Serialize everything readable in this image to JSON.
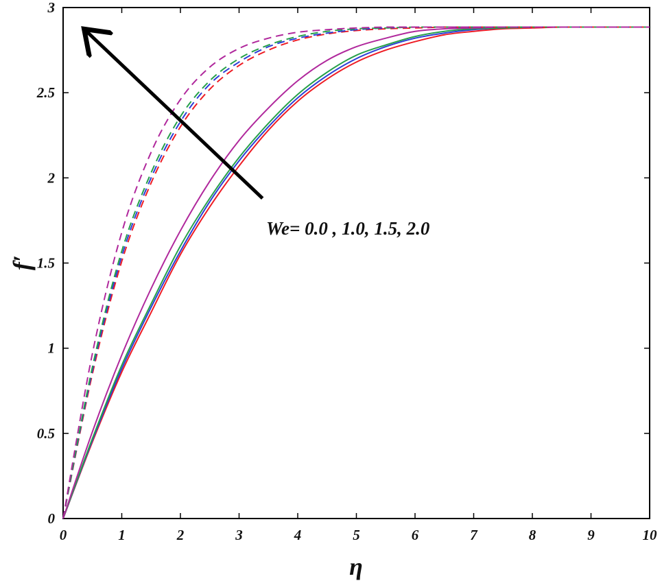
{
  "chart_data": {
    "type": "line",
    "title": "",
    "xlabel": "η",
    "ylabel": "f′",
    "xlim": [
      0,
      10
    ],
    "ylim": [
      0,
      3
    ],
    "xticks": [
      "0",
      "1",
      "2",
      "3",
      "4",
      "5",
      "6",
      "7",
      "8",
      "9",
      "10"
    ],
    "yticks": [
      "0",
      "0.5",
      "1",
      "1.5",
      "2",
      "2.5",
      "3"
    ],
    "annotation": "We= 0.0 , 1.0, 1.5, 2.0",
    "arrow": {
      "from": [
        3.4,
        1.88
      ],
      "to": [
        0.4,
        2.86
      ]
    },
    "x": [
      0,
      0.5,
      1,
      1.5,
      2,
      2.5,
      3,
      3.5,
      4,
      4.5,
      5,
      5.5,
      6,
      6.5,
      7,
      7.5,
      8,
      8.5,
      9,
      9.5,
      10
    ],
    "series": [
      {
        "color": "#ee1c24",
        "dash": false,
        "values": [
          0.0,
          0.45,
          0.86,
          1.21,
          1.55,
          1.83,
          2.07,
          2.28,
          2.45,
          2.58,
          2.68,
          2.75,
          2.8,
          2.84,
          2.86,
          2.875,
          2.88,
          2.885,
          2.885,
          2.885,
          2.885
        ]
      },
      {
        "color": "#2b3fd6",
        "dash": false,
        "values": [
          0.0,
          0.46,
          0.88,
          1.24,
          1.57,
          1.86,
          2.1,
          2.3,
          2.47,
          2.6,
          2.7,
          2.77,
          2.82,
          2.85,
          2.87,
          2.88,
          2.885,
          2.885,
          2.885,
          2.885,
          2.885
        ]
      },
      {
        "color": "#26a04a",
        "dash": false,
        "values": [
          0.0,
          0.47,
          0.9,
          1.26,
          1.6,
          1.88,
          2.12,
          2.32,
          2.49,
          2.62,
          2.72,
          2.78,
          2.83,
          2.86,
          2.875,
          2.88,
          2.885,
          2.885,
          2.885,
          2.885,
          2.885
        ]
      },
      {
        "color": "#b0289c",
        "dash": false,
        "values": [
          0.0,
          0.51,
          0.96,
          1.35,
          1.69,
          1.98,
          2.22,
          2.41,
          2.57,
          2.69,
          2.77,
          2.82,
          2.86,
          2.875,
          2.88,
          2.885,
          2.885,
          2.885,
          2.885,
          2.885,
          2.885
        ]
      },
      {
        "color": "#ee1c24",
        "dash": true,
        "values": [
          0.0,
          0.85,
          1.51,
          1.97,
          2.3,
          2.52,
          2.66,
          2.75,
          2.81,
          2.845,
          2.865,
          2.875,
          2.88,
          2.885,
          2.885,
          2.885,
          2.885,
          2.885,
          2.885,
          2.885,
          2.885
        ]
      },
      {
        "color": "#2b3fd6",
        "dash": true,
        "values": [
          0.0,
          0.87,
          1.54,
          2.0,
          2.33,
          2.55,
          2.68,
          2.77,
          2.82,
          2.85,
          2.87,
          2.88,
          2.885,
          2.885,
          2.885,
          2.885,
          2.885,
          2.885,
          2.885,
          2.885,
          2.885
        ]
      },
      {
        "color": "#26a04a",
        "dash": true,
        "values": [
          0.0,
          0.89,
          1.57,
          2.03,
          2.36,
          2.57,
          2.7,
          2.78,
          2.83,
          2.86,
          2.875,
          2.88,
          2.885,
          2.885,
          2.885,
          2.885,
          2.885,
          2.885,
          2.885,
          2.885,
          2.885
        ]
      },
      {
        "color": "#b0289c",
        "dash": true,
        "values": [
          0.0,
          0.97,
          1.68,
          2.15,
          2.46,
          2.65,
          2.76,
          2.82,
          2.855,
          2.87,
          2.88,
          2.885,
          2.885,
          2.885,
          2.885,
          2.885,
          2.885,
          2.885,
          2.885,
          2.885,
          2.885
        ]
      }
    ]
  }
}
